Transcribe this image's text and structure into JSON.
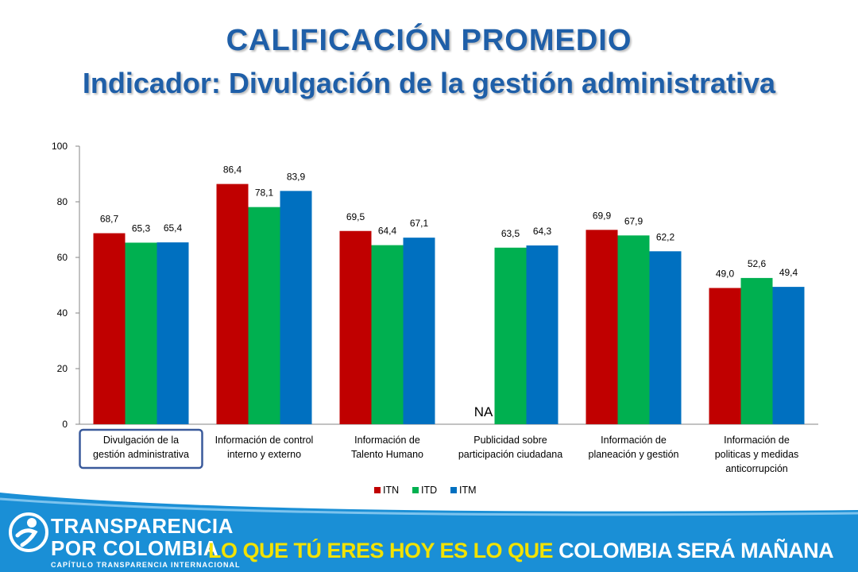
{
  "title": {
    "line1": "CALIFICACIÓN PROMEDIO",
    "line2": "Indicador: Divulgación de  la gestión administrativa"
  },
  "chart_data": {
    "type": "bar",
    "title": "",
    "xlabel": "",
    "ylabel": "",
    "ylim": [
      0,
      100
    ],
    "yticks": [
      "0",
      "20",
      "40",
      "60",
      "80",
      "100"
    ],
    "grid": false,
    "legend_position": "bottom",
    "categories": [
      [
        "Divulgación de  la",
        "gestión administrativa"
      ],
      [
        "Información de control",
        "interno y externo"
      ],
      [
        "Información de",
        "Talento Humano"
      ],
      [
        "Publicidad sobre",
        "participación ciudadana"
      ],
      [
        "Información de",
        "planeación y gestión"
      ],
      [
        "Información de",
        "politicas y medidas",
        "anticorrupción"
      ]
    ],
    "series": [
      {
        "name": "ITN",
        "color": "#c00000",
        "values": [
          68.7,
          86.4,
          69.5,
          null,
          69.9,
          49.0
        ],
        "labels": [
          "68,7",
          "86,4",
          "69,5",
          "",
          "69,9",
          "49,0"
        ]
      },
      {
        "name": "ITD",
        "color": "#00b050",
        "values": [
          65.3,
          78.1,
          64.4,
          63.5,
          67.9,
          52.6
        ],
        "labels": [
          "65,3",
          "78,1",
          "64,4",
          "63,5",
          "67,9",
          "52,6"
        ]
      },
      {
        "name": "ITM",
        "color": "#0070c0",
        "values": [
          65.4,
          83.9,
          67.1,
          64.3,
          62.2,
          49.4
        ],
        "labels": [
          "65,4",
          "83,9",
          "67,1",
          "64,3",
          "62,2",
          "49,4"
        ]
      }
    ],
    "annotations": [
      {
        "text": "NA",
        "category_index": 3,
        "series_index": 0
      }
    ],
    "highlighted_category_index": 0
  },
  "footer": {
    "brand_line1": "TRANSPARENCIA",
    "brand_line2": "POR COLOMBIA",
    "brand_sub": "CAPÍTULO TRANSPARENCIA INTERNACIONAL",
    "slogan_part1": "LO QUE TÚ ERES HOY ES LO QUE ",
    "slogan_part2": "COLOMBIA SERÁ MAÑANA",
    "bg_color": "#1a8fd6",
    "accent_color": "#f2e200"
  }
}
